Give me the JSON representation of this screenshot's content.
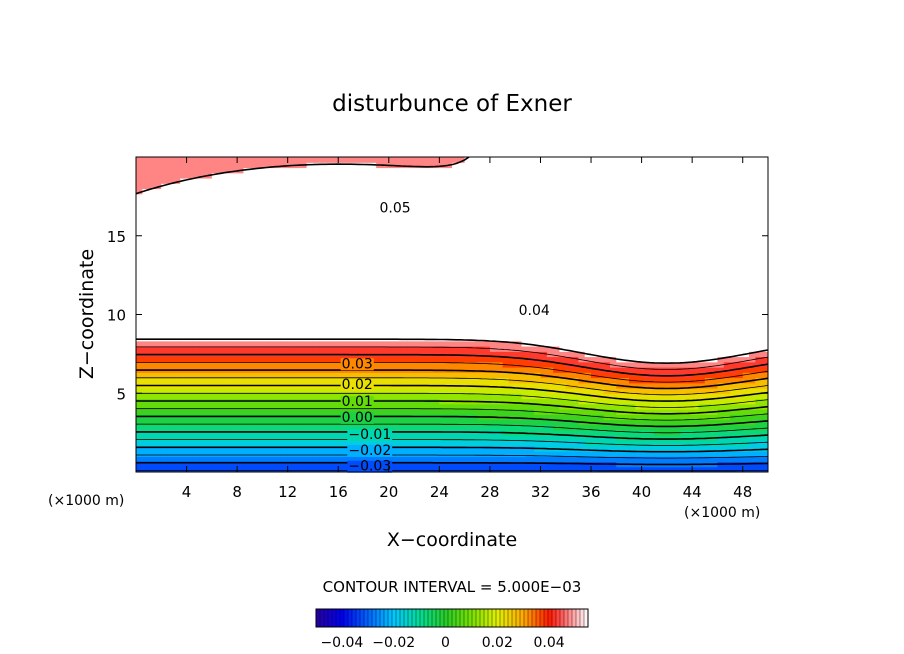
{
  "chart_data": {
    "type": "heatmap",
    "title": "disturbunce of Exner",
    "xlabel": "X−coordinate",
    "ylabel": "Z−coordinate",
    "x_unit_left": "(×1000 m)",
    "x_unit_right": "(×1000 m)",
    "xlim": [
      0,
      50
    ],
    "ylim": [
      0,
      20
    ],
    "x_ticks": [
      4,
      8,
      12,
      16,
      20,
      24,
      28,
      32,
      36,
      40,
      44,
      48
    ],
    "x_tick_labels": [
      "4",
      "8",
      "12",
      "16",
      "20",
      "24",
      "28",
      "32",
      "36",
      "40",
      "44",
      "48"
    ],
    "y_ticks": [
      5,
      10,
      15
    ],
    "y_tick_labels": [
      "5",
      "10",
      "15"
    ],
    "contour_interval_text": "CONTOUR INTERVAL = 5.000E−03",
    "contour_interval": 0.005,
    "contour_labels": [
      {
        "text": "0.05",
        "x": 20.5,
        "z": 16.8
      },
      {
        "text": "0.04",
        "x": 31.5,
        "z": 10.3
      },
      {
        "text": "0.03",
        "x": 17.5,
        "z": 6.9
      },
      {
        "text": "0.02",
        "x": 17.5,
        "z": 5.6
      },
      {
        "text": "0.01",
        "x": 17.5,
        "z": 4.5
      },
      {
        "text": "0.00",
        "x": 17.5,
        "z": 3.5
      },
      {
        "text": "−0.01",
        "x": 18.5,
        "z": 2.4
      },
      {
        "text": "−0.02",
        "x": 18.5,
        "z": 1.4
      },
      {
        "text": "−0.03",
        "x": 18.5,
        "z": 0.4
      }
    ],
    "colorbar": {
      "min": -0.05,
      "max": 0.055,
      "ticks": [
        -0.04,
        -0.02,
        0,
        0.02,
        0.04
      ],
      "tick_labels": [
        "−0.04",
        "−0.02",
        "0",
        "0.02",
        "0.04"
      ]
    },
    "field_description": {
      "surface_value": -0.035,
      "max_value": 0.05,
      "max_region_center": {
        "x": 16,
        "z": 14
      }
    }
  }
}
